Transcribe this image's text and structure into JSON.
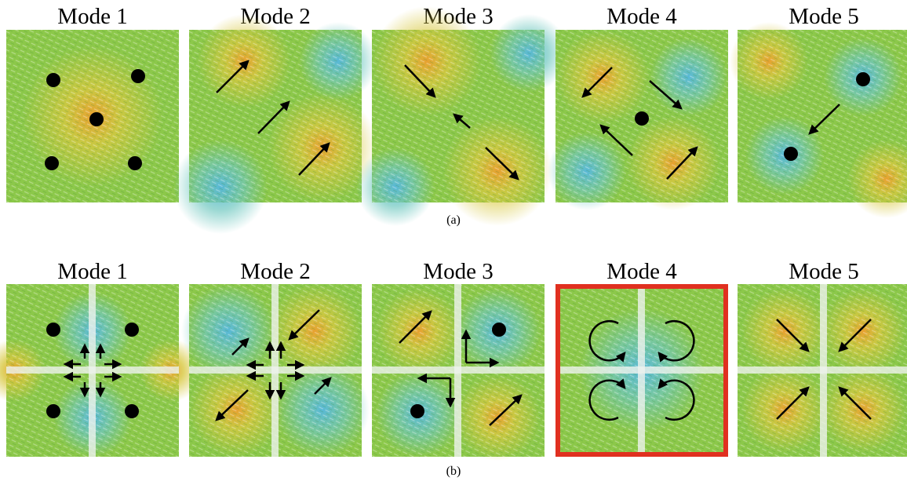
{
  "rows": [
    {
      "titles": [
        "Mode 1",
        "Mode 2",
        "Mode 3",
        "Mode 4",
        "Mode 5"
      ],
      "label": "(a)"
    },
    {
      "titles": [
        "Mode 1",
        "Mode 2",
        "Mode 3",
        "Mode 4",
        "Mode 5"
      ],
      "label": "(b)"
    }
  ]
}
